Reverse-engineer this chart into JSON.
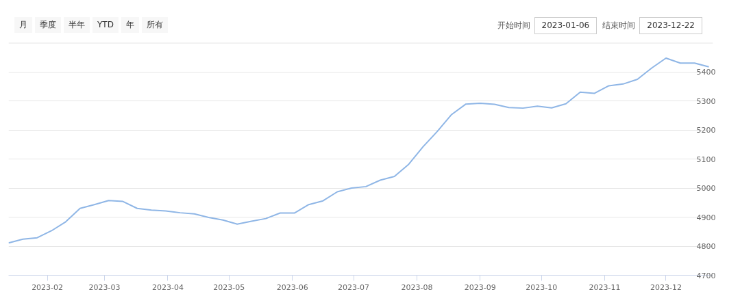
{
  "chart_data": {
    "type": "line",
    "x": [
      "2023-01-13",
      "2023-01-20",
      "2023-01-27",
      "2023-02-03",
      "2023-02-10",
      "2023-02-17",
      "2023-02-24",
      "2023-03-03",
      "2023-03-10",
      "2023-03-17",
      "2023-03-24",
      "2023-03-31",
      "2023-04-07",
      "2023-04-14",
      "2023-04-21",
      "2023-04-28",
      "2023-05-05",
      "2023-05-12",
      "2023-05-19",
      "2023-05-26",
      "2023-06-02",
      "2023-06-09",
      "2023-06-16",
      "2023-06-23",
      "2023-06-30",
      "2023-07-07",
      "2023-07-14",
      "2023-07-21",
      "2023-07-28",
      "2023-08-04",
      "2023-08-11",
      "2023-08-18",
      "2023-08-25",
      "2023-09-01",
      "2023-09-08",
      "2023-09-15",
      "2023-09-22",
      "2023-09-29",
      "2023-10-06",
      "2023-10-13",
      "2023-10-20",
      "2023-10-27",
      "2023-11-03",
      "2023-11-10",
      "2023-11-17",
      "2023-11-24",
      "2023-12-01",
      "2023-12-08",
      "2023-12-15",
      "2023-12-22"
    ],
    "series": [
      {
        "color": "#8fb6e6",
        "values": [
          4811,
          4824,
          4829,
          4853,
          4884,
          4930,
          4943,
          4957,
          4954,
          4930,
          4924,
          4921,
          4915,
          4911,
          4899,
          4890,
          4876,
          4886,
          4895,
          4914,
          4914,
          4943,
          4956,
          4987,
          5000,
          5005,
          5027,
          5040,
          5082,
          5142,
          5195,
          5253,
          5289,
          5292,
          5288,
          5277,
          5275,
          5282,
          5276,
          5290,
          5330,
          5326,
          5352,
          5358,
          5374,
          5413,
          5447,
          5430,
          5430,
          5417
        ]
      }
    ],
    "xlim": [
      "2023-01-13",
      "2023-12-24"
    ],
    "xticks": [
      {
        "value": "2023-02-01",
        "label": "2023-02"
      },
      {
        "value": "2023-03-01",
        "label": "2023-03"
      },
      {
        "value": "2023-04-01",
        "label": "2023-04"
      },
      {
        "value": "2023-05-01",
        "label": "2023-05"
      },
      {
        "value": "2023-06-01",
        "label": "2023-06"
      },
      {
        "value": "2023-07-01",
        "label": "2023-07"
      },
      {
        "value": "2023-08-01",
        "label": "2023-08"
      },
      {
        "value": "2023-09-01",
        "label": "2023-09"
      },
      {
        "value": "2023-10-01",
        "label": "2023-10"
      },
      {
        "value": "2023-11-01",
        "label": "2023-11"
      },
      {
        "value": "2023-12-01",
        "label": "2023-12"
      }
    ],
    "ylim": [
      4700,
      5500
    ],
    "yticks": [
      4700,
      4800,
      4900,
      5000,
      5100,
      5200,
      5300,
      5400,
      {
        "value": 5500,
        "label": null
      }
    ],
    "grid": "y",
    "annotations": [
      "月",
      "季度",
      "半年",
      "YTD",
      "年",
      "所有",
      "开始时间",
      "2023-01-06",
      "结束时间",
      "2023-12-22"
    ]
  }
}
